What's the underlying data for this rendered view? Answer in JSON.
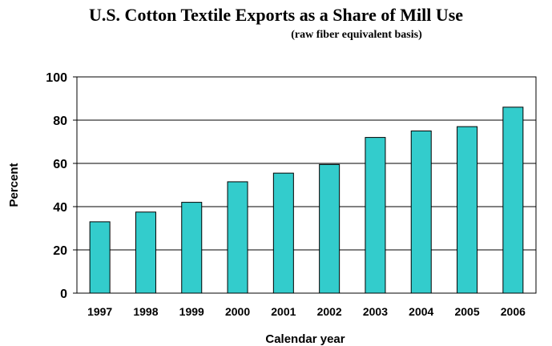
{
  "chart_data": {
    "type": "bar",
    "title": "U.S. Cotton Textile Exports as a Share of Mill Use",
    "subtitle": "(raw fiber equivalent basis)",
    "xlabel": "Calendar year",
    "ylabel": "Percent",
    "categories": [
      "1997",
      "1998",
      "1999",
      "2000",
      "2001",
      "2002",
      "2003",
      "2004",
      "2005",
      "2006"
    ],
    "values": [
      33,
      37.5,
      42,
      51.5,
      55.5,
      59.5,
      72,
      75,
      77,
      86
    ],
    "ylim": [
      0,
      100
    ],
    "yticks": [
      0,
      20,
      40,
      60,
      80,
      100
    ],
    "grid": true,
    "legend": "none",
    "bar_color": "#33CCCC"
  }
}
